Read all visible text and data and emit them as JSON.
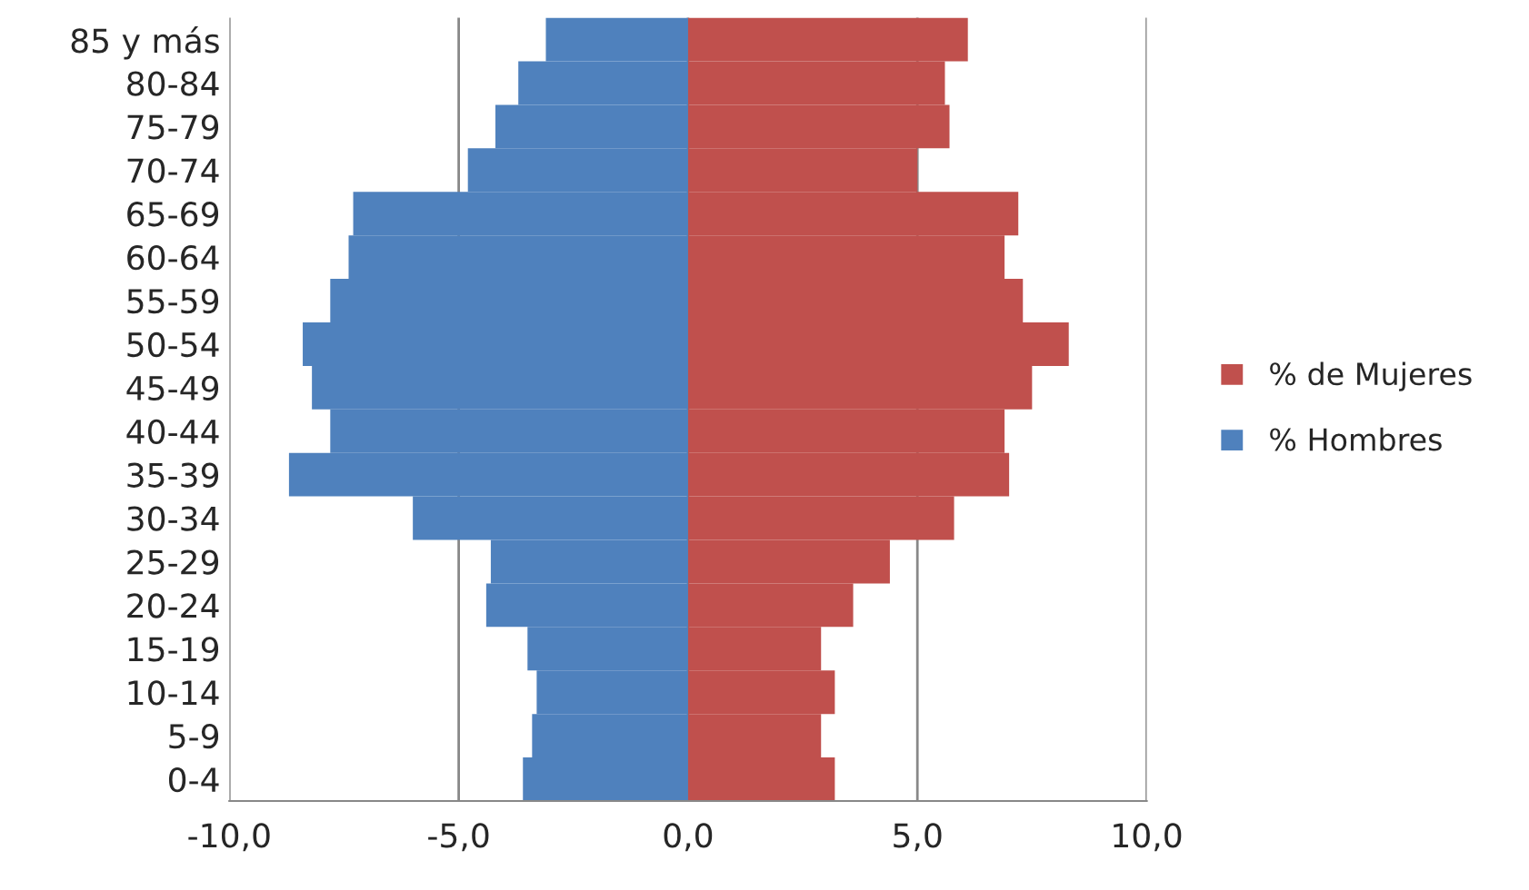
{
  "chart_data": {
    "type": "bar",
    "orientation": "horizontal",
    "categories": [
      "85 y más",
      "80-84",
      "75-79",
      "70-74",
      "65-69",
      "60-64",
      "55-59",
      "50-54",
      "45-49",
      "40-44",
      "35-39",
      "30-34",
      "25-29",
      "20-24",
      "15-19",
      "10-14",
      "5-9",
      "0-4"
    ],
    "series": [
      {
        "name": "% de Mujeres",
        "color": "#c0504d",
        "values": [
          6.1,
          5.6,
          5.7,
          5.0,
          7.2,
          6.9,
          7.3,
          8.3,
          7.5,
          6.9,
          7.0,
          5.8,
          4.4,
          3.6,
          2.9,
          3.2,
          2.9,
          3.2
        ]
      },
      {
        "name": "% Hombres",
        "color": "#4f81bd",
        "values": [
          -3.1,
          -3.7,
          -4.2,
          -4.8,
          -7.3,
          -7.4,
          -7.8,
          -8.4,
          -8.2,
          -7.8,
          -8.7,
          -6.0,
          -4.3,
          -4.4,
          -3.5,
          -3.3,
          -3.4,
          -3.6
        ]
      }
    ],
    "xlim": [
      -10,
      10
    ],
    "xticks": [
      {
        "value": -10,
        "label": "-10,0"
      },
      {
        "value": -5,
        "label": "-5,0"
      },
      {
        "value": 0,
        "label": "0,0"
      },
      {
        "value": 5,
        "label": "5,0"
      },
      {
        "value": 10,
        "label": "10,0"
      }
    ],
    "grid": "x",
    "legend": "right",
    "stacked": true
  }
}
